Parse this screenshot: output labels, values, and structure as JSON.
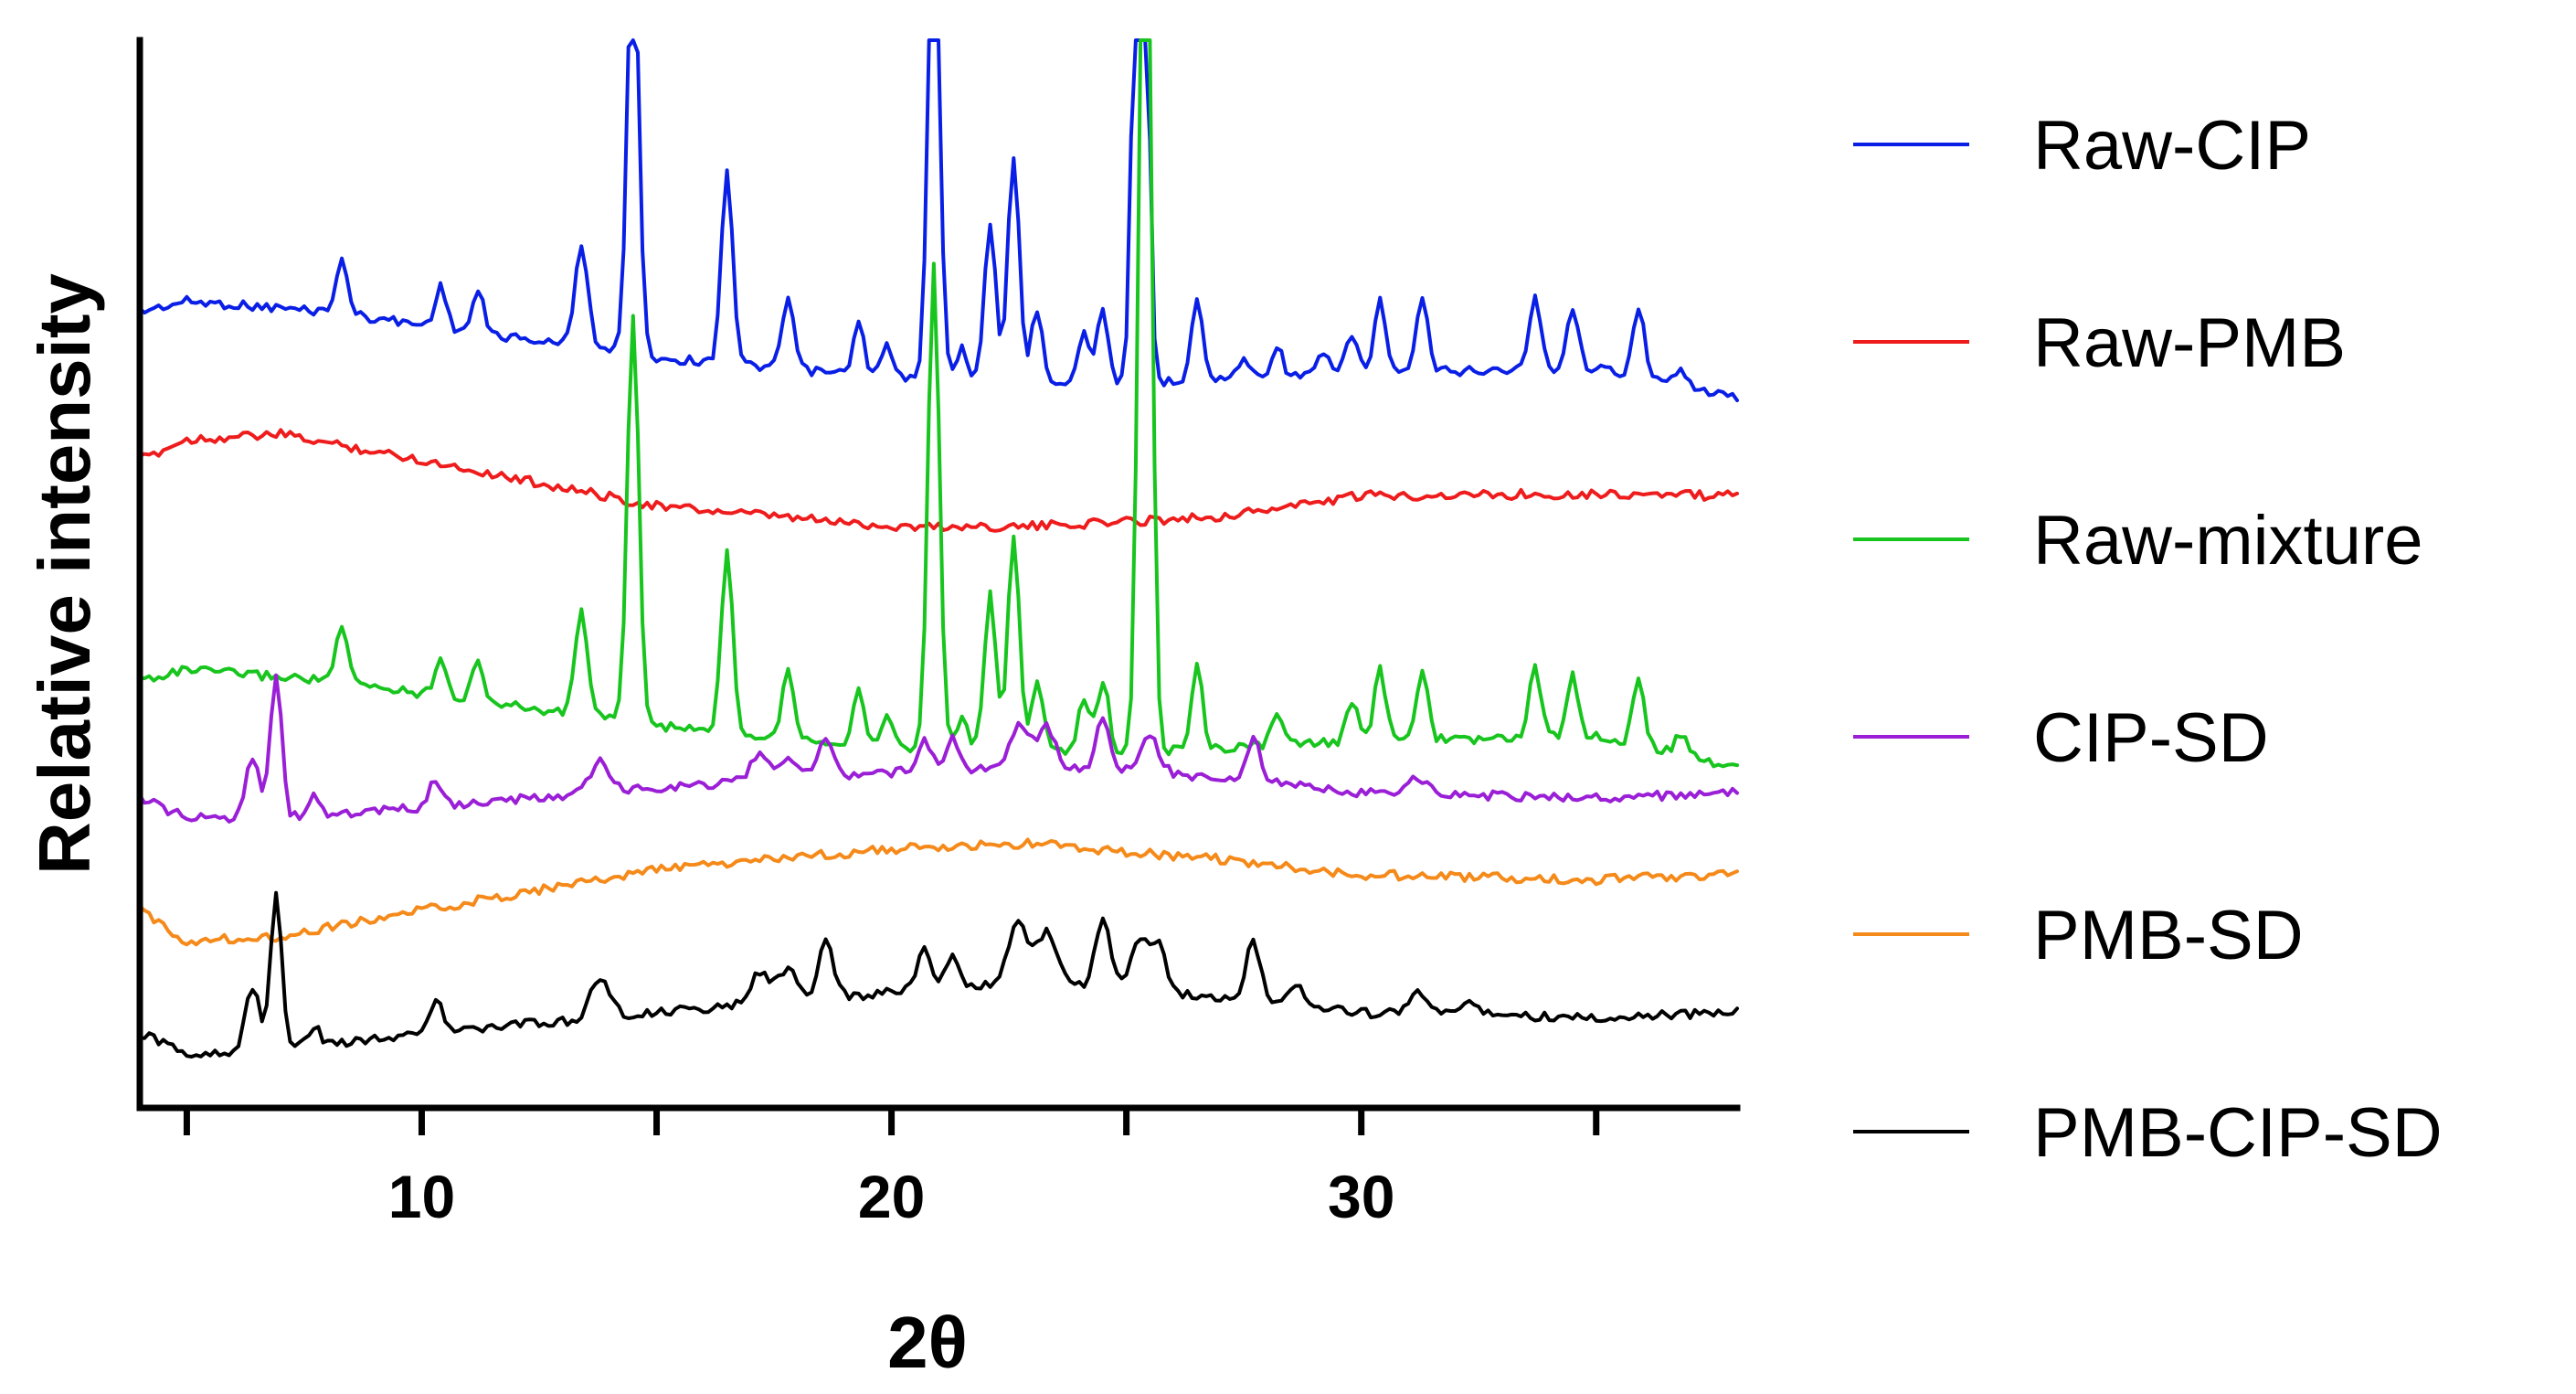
{
  "chart_data": {
    "type": "line",
    "title": "",
    "xlabel": "2θ",
    "ylabel": "Relative intensity",
    "xlim": [
      4,
      38
    ],
    "x_ticks": [
      10,
      20,
      30
    ],
    "x_minor_ticks": [
      5,
      15,
      25,
      35
    ],
    "x_step": 0.1,
    "y_ticks": [],
    "grid": false,
    "legend_position": "right",
    "series": [
      {
        "name": "Raw-CIP",
        "color": "#0a1fe6",
        "baseline": {
          "x": [
            4,
            5,
            8,
            15,
            20,
            25,
            30,
            35,
            38
          ],
          "y": [
            26.5,
            25.5,
            26.5,
            31,
            33,
            33.5,
            32.5,
            32,
            35
          ]
        },
        "peaks": [
          [
            8.3,
            5,
            0.13
          ],
          [
            10.4,
            4,
            0.12
          ],
          [
            11.2,
            4,
            0.12
          ],
          [
            13.4,
            10,
            0.14
          ],
          [
            14.5,
            42,
            0.12
          ],
          [
            16.5,
            19,
            0.12
          ],
          [
            17.8,
            7,
            0.12
          ],
          [
            19.3,
            5,
            0.12
          ],
          [
            19.9,
            3,
            0.12
          ],
          [
            20.9,
            48,
            0.12
          ],
          [
            21.5,
            3,
            0.12
          ],
          [
            22.1,
            15,
            0.12
          ],
          [
            22.6,
            22,
            0.12
          ],
          [
            23.1,
            7,
            0.12
          ],
          [
            24.1,
            5,
            0.12
          ],
          [
            24.5,
            7,
            0.12
          ],
          [
            25.3,
            95,
            0.12
          ],
          [
            26.5,
            8,
            0.12
          ],
          [
            27.5,
            2,
            0.12
          ],
          [
            28.2,
            3,
            0.12
          ],
          [
            29.2,
            2,
            0.12
          ],
          [
            29.8,
            4,
            0.12
          ],
          [
            30.4,
            7,
            0.12
          ],
          [
            31.3,
            7,
            0.12
          ],
          [
            33.7,
            7,
            0.12
          ],
          [
            34.5,
            6,
            0.12
          ],
          [
            35.9,
            7,
            0.12
          ],
          [
            36.8,
            2,
            0.12
          ]
        ]
      },
      {
        "name": "Raw-PMB",
        "color": "#ee1c1c",
        "baseline": {
          "x": [
            4,
            5,
            7,
            10,
            15,
            20,
            23,
            27,
            30,
            35,
            38
          ],
          "y": [
            41,
            39,
            38.5,
            41,
            45.5,
            47.5,
            47.5,
            46.5,
            44.5,
            44.3,
            44.5
          ]
        },
        "peaks": []
      },
      {
        "name": "Raw-mixture",
        "color": "#18c51e",
        "baseline": {
          "x": [
            4,
            5,
            8,
            15,
            20,
            25,
            30,
            35,
            38
          ],
          "y": [
            62.5,
            61.5,
            62.5,
            67,
            69,
            69.5,
            68.5,
            68,
            71
          ]
        },
        "peaks": [
          [
            8.3,
            5,
            0.13
          ],
          [
            10.4,
            4,
            0.12
          ],
          [
            11.2,
            4,
            0.12
          ],
          [
            13.4,
            10,
            0.14
          ],
          [
            14.5,
            40,
            0.12
          ],
          [
            16.5,
            18,
            0.12
          ],
          [
            17.8,
            7,
            0.12
          ],
          [
            19.3,
            5,
            0.12
          ],
          [
            19.9,
            3,
            0.12
          ],
          [
            20.9,
            47,
            0.12
          ],
          [
            21.5,
            3,
            0.12
          ],
          [
            22.1,
            15,
            0.12
          ],
          [
            22.6,
            21,
            0.12
          ],
          [
            23.1,
            7,
            0.12
          ],
          [
            24.1,
            5,
            0.12
          ],
          [
            24.5,
            7,
            0.12
          ],
          [
            25.4,
            110,
            0.12
          ],
          [
            26.5,
            8,
            0.12
          ],
          [
            28.2,
            3,
            0.12
          ],
          [
            29.8,
            4,
            0.12
          ],
          [
            30.4,
            7,
            0.12
          ],
          [
            31.3,
            7,
            0.12
          ],
          [
            33.7,
            7,
            0.12
          ],
          [
            34.5,
            6,
            0.12
          ],
          [
            35.9,
            7,
            0.12
          ],
          [
            36.8,
            2,
            0.12
          ]
        ]
      },
      {
        "name": "CIP-SD",
        "color": "#9a1fd6",
        "baseline": {
          "x": [
            4,
            5,
            7,
            10,
            15,
            20,
            23,
            27,
            30,
            35,
            38
          ],
          "y": [
            74,
            76,
            76,
            75,
            73,
            71.5,
            71,
            72,
            73.5,
            74,
            73.5
          ]
        },
        "peaks": [
          [
            6.4,
            6,
            0.15
          ],
          [
            6.9,
            14,
            0.12
          ],
          [
            7.7,
            2,
            0.12
          ],
          [
            10.3,
            2.5,
            0.15
          ],
          [
            13.8,
            3,
            0.2
          ],
          [
            17.2,
            2.5,
            0.2
          ],
          [
            17.8,
            2,
            0.2
          ],
          [
            18.6,
            4,
            0.15
          ],
          [
            20.7,
            3,
            0.15
          ],
          [
            21.3,
            3,
            0.15
          ],
          [
            22.7,
            4,
            0.2
          ],
          [
            23.3,
            4,
            0.2
          ],
          [
            24.5,
            5,
            0.15
          ],
          [
            25.5,
            3.5,
            0.2
          ],
          [
            27.7,
            4,
            0.15
          ],
          [
            31.2,
            1.5,
            0.2
          ]
        ]
      },
      {
        "name": "PMB-SD",
        "color": "#f58a1a",
        "baseline": {
          "x": [
            4,
            5,
            7,
            10,
            15,
            20,
            23,
            27,
            30,
            35,
            38
          ],
          "y": [
            85,
            88,
            87.5,
            85,
            81,
            79,
            78.5,
            80,
            81.5,
            82,
            81.5
          ]
        },
        "peaks": []
      },
      {
        "name": "PMB-CIP-SD",
        "color": "#000000",
        "baseline": {
          "x": [
            4,
            5,
            7,
            10,
            15,
            20,
            23,
            27,
            30,
            35,
            38
          ],
          "y": [
            97,
            99,
            98.5,
            97,
            95,
            93,
            92,
            93.5,
            95,
            95.5,
            95
          ]
        },
        "peaks": [
          [
            6.4,
            6,
            0.15
          ],
          [
            6.9,
            15,
            0.12
          ],
          [
            7.7,
            2,
            0.12
          ],
          [
            10.3,
            3,
            0.15
          ],
          [
            13.8,
            4,
            0.2
          ],
          [
            17.2,
            3,
            0.2
          ],
          [
            17.8,
            3,
            0.2
          ],
          [
            18.6,
            6,
            0.15
          ],
          [
            20.7,
            4,
            0.15
          ],
          [
            21.3,
            3,
            0.15
          ],
          [
            22.7,
            6,
            0.2
          ],
          [
            23.3,
            5,
            0.2
          ],
          [
            24.5,
            7,
            0.15
          ],
          [
            25.3,
            5,
            0.2
          ],
          [
            25.7,
            4,
            0.15
          ],
          [
            27.7,
            6,
            0.15
          ],
          [
            28.6,
            2,
            0.2
          ],
          [
            31.2,
            2,
            0.2
          ],
          [
            32.3,
            1.5,
            0.2
          ]
        ]
      }
    ]
  }
}
